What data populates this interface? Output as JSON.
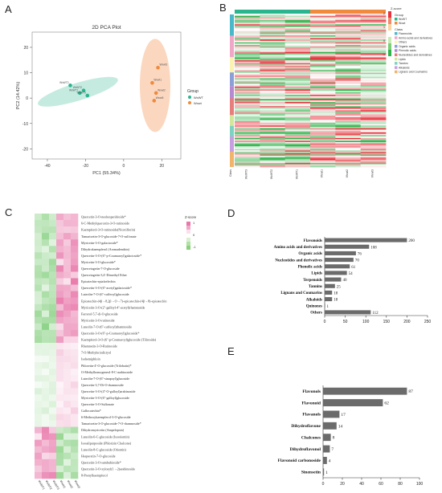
{
  "panels": {
    "a": "A",
    "b": "B",
    "c": "C",
    "d": "D",
    "e": "E"
  },
  "colors": {
    "wt": "#2bb58f",
    "wt_ellipse": "#bfe9dd",
    "mut": "#f08a3c",
    "mut_ellipse": "#fbd3b8",
    "bar": "#6b6b6b",
    "heat_red": "#e8323c",
    "heat_green": "#2fb34a",
    "heat_pink": "#ee8ab5",
    "heat_lightgreen": "#a6dca0"
  },
  "chart_data": [
    {
      "type": "scatter",
      "title": "2D PCA Plot",
      "xlabel": "PC1 (55.34%)",
      "ylabel": "PC2 (14.42%)",
      "xticks": [
        "-40",
        "-20",
        "0",
        "20"
      ],
      "yticks": [
        "20",
        "10",
        "0",
        "-10",
        "-20"
      ],
      "xlim": [
        -48,
        30
      ],
      "ylim": [
        -24,
        26
      ],
      "legend": {
        "title": "Group",
        "placement": "right",
        "entries": [
          "WxWT",
          "Wxwt"
        ]
      },
      "series": [
        {
          "name": "WxWT",
          "points": [
            [
              -28,
              5
            ],
            [
              -23,
              2
            ],
            [
              -21,
              3
            ],
            [
              -19,
              1
            ]
          ],
          "labels": [
            "WxWT3",
            "WxWT1",
            "WxWT2",
            "WxWT5"
          ]
        },
        {
          "name": "Wxwt",
          "points": [
            [
              18,
              12
            ],
            [
              15,
              6
            ],
            [
              17,
              2
            ],
            [
              16,
              -1
            ]
          ],
          "labels": [
            "Wxwt3",
            "Wxwt1",
            "Wxwt2",
            "Wxwt5"
          ]
        }
      ]
    },
    {
      "type": "heatmap",
      "legend_title": "Z-score",
      "scale_ticks": [
        "2",
        "1",
        "0",
        "-1"
      ],
      "group_legend": {
        "title": "Group",
        "entries": [
          "WxWT",
          "Wxwt"
        ]
      },
      "class_legend": {
        "title": "Class",
        "entries": [
          "Flavonoids",
          "Amino acids and derivatives",
          "Others",
          "Organic acids",
          "Phenolic acids",
          "Nucleotides and derivatives",
          "Lipids",
          "Tannins",
          "Alkaloids",
          "Lignans and Coumarins"
        ]
      },
      "class_colors": [
        "#49b8c8",
        "#f0a6c7",
        "#fbf3b0",
        "#8aa0d6",
        "#b58ad0",
        "#e87d7d",
        "#d2e79a",
        "#7fd2c2",
        "#c79fe0",
        "#f2b46b"
      ],
      "row_label": "Class",
      "columns": [
        "WxWT3",
        "WxWT2",
        "WxWT1",
        "Wxwt1",
        "Wxwt2",
        "Wxwt3"
      ]
    },
    {
      "type": "heatmap",
      "legend_title": "Z-score",
      "scale_ticks": [
        "1",
        "0",
        "-1"
      ],
      "columns": [
        "WxWT1",
        "WxWT2",
        "WxWT3",
        "Wxwt1",
        "Wxwt2",
        "Wxwt3"
      ],
      "rows": [
        "Quercetin-3-O-neohesperidoside*",
        "6-C-Methylquercetin-3-O-rutinoside",
        "Kaempferol-3-O-rutinoside(Nicotiflorin)",
        "Tamarixetin-3-O-glucoside-7-O-sulfonate",
        "Myricetin-3-O-galactoside*",
        "Dihydrokaempferol (Aromadendrin)",
        "Quercetin-3-O-(6''-p-Coumaroyl)galactoside*",
        "Myricetin-3-O-glucoside*",
        "Quercetagetin-7-O-glucoside",
        "Quercetagetin-3,4'-Dimethyl Ether",
        "Epicatechin-epiafzelechin",
        "Quercetin-3-O-(6''-acetyl)galactoside*",
        "Luteolin-7-O-(6''-caffeoyl)glucoside",
        "Epicatechin-(4β→8,2β→O→7)-epicatechin-(4β→8)-epicatechin",
        "Myricetin-3-O-(2''-galloyl-4''-acetyl)rhamnoside",
        "Farrerol-5,7-di-O-glucoside",
        "Myricetin-3-O-rutinoside",
        "Luteolin-7-O-(6''-caffeoyl)rhamnoside",
        "Quercetin-3-O-(6''-p-Coumaroyl)glucoside*",
        "Kaempferol-3-O-(6''-p-Coumaroyl)glucoside (Tiliroside)",
        "Rhamnetin-3-O-Rutinoside",
        "7-O-Methyleriodictyol",
        "Isohemiphloin",
        "Phloretin-4'-O-glucoside (Trilobatin)*",
        "O-Methylhomogeneol-8-C-arabinoside",
        "Luteolin-7-O-(6''-sinapoyl)glucoside",
        "Quercetin-3,7-Di-O-rhamnoside",
        "Quercetin-3-O-(4''-O-galloyl)arabinoside",
        "Myricetin-3-O-(6''-galloyl)glucoside",
        "Quercetin-3-O-Sulfonate",
        "Gallocatechin*",
        "6-Methoxykaempferol-3-O-glucoside",
        "Tamarixetin-3-O-glucoside-7-O-rhamnoside*",
        "Dihydromyricetin (Ampelopsin)",
        "Luteolin-6-C-glucoside (Isoorientin)",
        "Isosalipurposide (Phlorizin Chalcone)",
        "Luteolin-8-C-glucoside (Orientin)",
        "Hesperetin-7-O-glucoside",
        "Quercetin-3-O-sambubioside*",
        "Quercetin-3-O-xylosyl(1→2)arabinoside",
        "8-Prenylkaempferol"
      ]
    },
    {
      "type": "bar",
      "orientation": "horizontal",
      "categories": [
        "Flavonoids",
        "Amino acids and derivatives",
        "Organic acids",
        "Nucleotides and derivatives",
        "Phenolic acids",
        "Lipids",
        "Terpenoids",
        "Tannins",
        "Lignans and Coumarins",
        "Alkaloids",
        "Quinones",
        "Others"
      ],
      "values": [
        200,
        108,
        76,
        70,
        61,
        54,
        40,
        25,
        18,
        18,
        1,
        112
      ],
      "xticks": [
        "0",
        "50",
        "100",
        "150",
        "200",
        "250"
      ],
      "xlim": [
        0,
        250
      ]
    },
    {
      "type": "bar",
      "orientation": "horizontal",
      "categories": [
        "Flavonols",
        "Flavonoid",
        "Flavanols",
        "Dihydroflavone",
        "Chalcones",
        "Dihydroflavonol",
        "Flavonoid carbonoside",
        "Sinensetin"
      ],
      "values": [
        87,
        62,
        17,
        14,
        8,
        7,
        4,
        1
      ],
      "xticks": [
        "0",
        "20",
        "40",
        "60",
        "80",
        "100"
      ],
      "xlim": [
        0,
        100
      ]
    }
  ]
}
